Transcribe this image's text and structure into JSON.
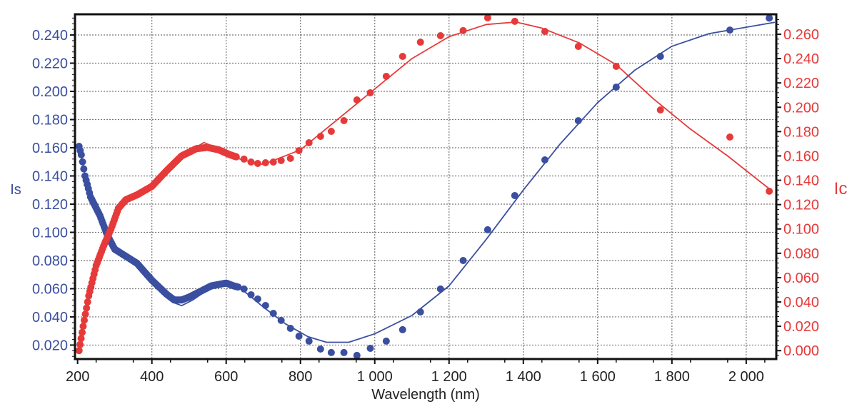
{
  "chart_data": {
    "type": "scatter",
    "title": "",
    "xlabel": "Wavelength (nm)",
    "ylabel_left": "Is",
    "ylabel_right": "Ic",
    "xlim": [
      193,
      2081
    ],
    "ylim_left": [
      0.0101,
      0.2547
    ],
    "ylim_right": [
      -0.0069,
      0.2764
    ],
    "grid": true,
    "x_ticks": [
      200,
      400,
      600,
      800,
      1000,
      1200,
      1400,
      1600,
      1800,
      2000
    ],
    "x_tick_labels": [
      "200",
      "400",
      "600",
      "800",
      "1 000",
      "1 200",
      "1 400",
      "1 600",
      "1 800",
      "2 000"
    ],
    "y_left_ticks": [
      0.02,
      0.04,
      0.06,
      0.08,
      0.1,
      0.12,
      0.14,
      0.16,
      0.18,
      0.2,
      0.22,
      0.24
    ],
    "y_left_tick_labels": [
      "0.020",
      "0.040",
      "0.060",
      "0.080",
      "0.100",
      "0.120",
      "0.140",
      "0.160",
      "0.180",
      "0.200",
      "0.220",
      "0.240"
    ],
    "y_right_ticks": [
      0,
      0.02,
      0.04,
      0.06,
      0.08,
      0.1,
      0.12,
      0.14,
      0.16,
      0.18,
      0.2,
      0.22,
      0.24,
      0.26
    ],
    "y_right_tick_labels": [
      "0.000",
      "0.020",
      "0.040",
      "0.060",
      "0.080",
      "0.100",
      "0.120",
      "0.140",
      "0.160",
      "0.180",
      "0.200",
      "0.220",
      "0.240",
      "0.260"
    ],
    "series": [
      {
        "name": "Is",
        "axis": "left",
        "color": "#3a4f9f",
        "dense_measured": [
          [
            204,
            0.161
          ],
          [
            210,
            0.155
          ],
          [
            220,
            0.14
          ],
          [
            235,
            0.125
          ],
          [
            260,
            0.112
          ],
          [
            280,
            0.098
          ],
          [
            300,
            0.088
          ],
          [
            330,
            0.083
          ],
          [
            360,
            0.078
          ],
          [
            400,
            0.066
          ],
          [
            440,
            0.056
          ],
          [
            460,
            0.052
          ],
          [
            480,
            0.052
          ],
          [
            500,
            0.054
          ],
          [
            530,
            0.058
          ],
          [
            560,
            0.062
          ],
          [
            600,
            0.064
          ],
          [
            620,
            0.062
          ],
          [
            635,
            0.061
          ]
        ],
        "measured": [
          [
            648,
            0.0598
          ],
          [
            667,
            0.0557
          ],
          [
            685,
            0.0527
          ],
          [
            706,
            0.0481
          ],
          [
            727,
            0.0425
          ],
          [
            748,
            0.0375
          ],
          [
            773,
            0.0319
          ],
          [
            796,
            0.0263
          ],
          [
            823,
            0.0228
          ],
          [
            854,
            0.0172
          ],
          [
            883,
            0.0147
          ],
          [
            917,
            0.0147
          ],
          [
            952,
            0.0127
          ],
          [
            988,
            0.0177
          ],
          [
            1031,
            0.0228
          ],
          [
            1075,
            0.0309
          ],
          [
            1123,
            0.0435
          ],
          [
            1177,
            0.0598
          ],
          [
            1238,
            0.08
          ],
          [
            1304,
            0.1018
          ],
          [
            1377,
            0.1261
          ],
          [
            1458,
            0.1514
          ],
          [
            1548,
            0.1792
          ],
          [
            1650,
            0.203
          ],
          [
            1769,
            0.2248
          ],
          [
            1956,
            0.2435
          ],
          [
            2062,
            0.252
          ]
        ],
        "fit": [
          [
            204,
            0.163
          ],
          [
            220,
            0.14
          ],
          [
            260,
            0.112
          ],
          [
            300,
            0.088
          ],
          [
            360,
            0.078
          ],
          [
            420,
            0.06
          ],
          [
            460,
            0.05
          ],
          [
            480,
            0.048
          ],
          [
            510,
            0.052
          ],
          [
            560,
            0.061
          ],
          [
            600,
            0.065
          ],
          [
            640,
            0.06
          ],
          [
            700,
            0.047
          ],
          [
            760,
            0.035
          ],
          [
            820,
            0.026
          ],
          [
            870,
            0.022
          ],
          [
            930,
            0.022
          ],
          [
            1000,
            0.028
          ],
          [
            1100,
            0.041
          ],
          [
            1200,
            0.062
          ],
          [
            1300,
            0.095
          ],
          [
            1400,
            0.13
          ],
          [
            1500,
            0.163
          ],
          [
            1600,
            0.192
          ],
          [
            1700,
            0.215
          ],
          [
            1800,
            0.232
          ],
          [
            1900,
            0.241
          ],
          [
            2077,
            0.249
          ]
        ]
      },
      {
        "name": "Ic",
        "axis": "right",
        "color": "#e63a3a",
        "dense_measured": [
          [
            204,
            0.0
          ],
          [
            215,
            0.02
          ],
          [
            230,
            0.045
          ],
          [
            250,
            0.07
          ],
          [
            270,
            0.086
          ],
          [
            290,
            0.1
          ],
          [
            310,
            0.117
          ],
          [
            330,
            0.124
          ],
          [
            360,
            0.128
          ],
          [
            400,
            0.135
          ],
          [
            440,
            0.148
          ],
          [
            480,
            0.16
          ],
          [
            520,
            0.166
          ],
          [
            550,
            0.167
          ],
          [
            580,
            0.165
          ],
          [
            610,
            0.161
          ],
          [
            630,
            0.159
          ]
        ],
        "measured": [
          [
            648,
            0.1574
          ],
          [
            667,
            0.155
          ],
          [
            685,
            0.1538
          ],
          [
            706,
            0.1544
          ],
          [
            727,
            0.155
          ],
          [
            748,
            0.1562
          ],
          [
            773,
            0.158
          ],
          [
            796,
            0.1644
          ],
          [
            823,
            0.1708
          ],
          [
            854,
            0.1761
          ],
          [
            883,
            0.1802
          ],
          [
            917,
            0.189
          ],
          [
            952,
            0.206
          ],
          [
            988,
            0.2119
          ],
          [
            1031,
            0.2254
          ],
          [
            1075,
            0.2418
          ],
          [
            1123,
            0.2535
          ],
          [
            1177,
            0.2588
          ],
          [
            1238,
            0.263
          ],
          [
            1304,
            0.2735
          ],
          [
            1377,
            0.2706
          ],
          [
            1458,
            0.2623
          ],
          [
            1548,
            0.25
          ],
          [
            1650,
            0.2336
          ],
          [
            1769,
            0.1978
          ],
          [
            1956,
            0.1755
          ],
          [
            2062,
            0.131
          ]
        ],
        "fit": [
          [
            204,
            0.0
          ],
          [
            230,
            0.045
          ],
          [
            270,
            0.086
          ],
          [
            310,
            0.117
          ],
          [
            360,
            0.128
          ],
          [
            420,
            0.14
          ],
          [
            480,
            0.16
          ],
          [
            540,
            0.171
          ],
          [
            580,
            0.166
          ],
          [
            640,
            0.157
          ],
          [
            700,
            0.153
          ],
          [
            800,
            0.165
          ],
          [
            900,
            0.19
          ],
          [
            1000,
            0.215
          ],
          [
            1100,
            0.24
          ],
          [
            1200,
            0.258
          ],
          [
            1300,
            0.268
          ],
          [
            1380,
            0.27
          ],
          [
            1450,
            0.265
          ],
          [
            1550,
            0.253
          ],
          [
            1650,
            0.235
          ],
          [
            1750,
            0.207
          ],
          [
            1850,
            0.182
          ],
          [
            1950,
            0.16
          ],
          [
            2062,
            0.133
          ]
        ]
      }
    ]
  }
}
